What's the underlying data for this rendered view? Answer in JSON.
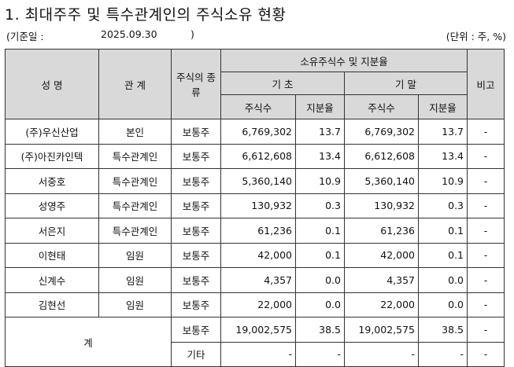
{
  "title": "1. 최대주주 및 특수관계인의 주식소유 현황",
  "base_date_label": "(기준일 :",
  "base_date": "2025.09.30",
  "base_date_close": ")",
  "unit": "(단위 : 주, %)",
  "headers": {
    "name": "성 명",
    "relation": "관 계",
    "stock_type": "주식의 종류",
    "holdings": "소유주식수 및 지분율",
    "begin": "기 초",
    "end": "기 말",
    "shares": "주식수",
    "ratio": "지분율",
    "remark": "비고"
  },
  "rows": [
    {
      "name": "(주)우신산업",
      "relation": "본인",
      "type": "보통주",
      "begin_shares": "6,769,302",
      "begin_ratio": "13.7",
      "end_shares": "6,769,302",
      "end_ratio": "13.7",
      "remark": "-"
    },
    {
      "name": "(주)아진카인텍",
      "relation": "특수관계인",
      "type": "보통주",
      "begin_shares": "6,612,608",
      "begin_ratio": "13.4",
      "end_shares": "6,612,608",
      "end_ratio": "13.4",
      "remark": "-"
    },
    {
      "name": "서중호",
      "relation": "특수관계인",
      "type": "보통주",
      "begin_shares": "5,360,140",
      "begin_ratio": "10.9",
      "end_shares": "5,360,140",
      "end_ratio": "10.9",
      "remark": "-"
    },
    {
      "name": "성영주",
      "relation": "특수관계인",
      "type": "보통주",
      "begin_shares": "130,932",
      "begin_ratio": "0.3",
      "end_shares": "130,932",
      "end_ratio": "0.3",
      "remark": "-"
    },
    {
      "name": "서은지",
      "relation": "특수관계인",
      "type": "보통주",
      "begin_shares": "61,236",
      "begin_ratio": "0.1",
      "end_shares": "61,236",
      "end_ratio": "0.1",
      "remark": "-"
    },
    {
      "name": "이현태",
      "relation": "임원",
      "type": "보통주",
      "begin_shares": "42,000",
      "begin_ratio": "0.1",
      "end_shares": "42,000",
      "end_ratio": "0.1",
      "remark": "-"
    },
    {
      "name": "신계수",
      "relation": "임원",
      "type": "보통주",
      "begin_shares": "4,357",
      "begin_ratio": "0.0",
      "end_shares": "4,357",
      "end_ratio": "0.0",
      "remark": "-"
    },
    {
      "name": "김현선",
      "relation": "임원",
      "type": "보통주",
      "begin_shares": "22,000",
      "begin_ratio": "0.0",
      "end_shares": "22,000",
      "end_ratio": "0.0",
      "remark": "-"
    }
  ],
  "total": {
    "label": "계",
    "common": {
      "type": "보통주",
      "begin_shares": "19,002,575",
      "begin_ratio": "38.5",
      "end_shares": "19,002,575",
      "end_ratio": "38.5",
      "remark": "-"
    },
    "other": {
      "type": "기타",
      "begin_shares": "-",
      "begin_ratio": "-",
      "end_shares": "-",
      "end_ratio": "-",
      "remark": "-"
    }
  }
}
